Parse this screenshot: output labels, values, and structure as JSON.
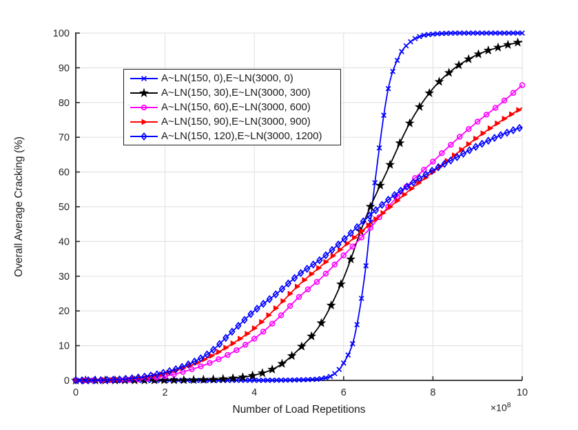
{
  "style": {
    "background": "#ffffff",
    "grid_color": "#e3e3e3",
    "axis_color": "#262626",
    "tick_label_color": "#262626",
    "label_color": "#1a1a1a",
    "legend_border_color": "#1a1a1a"
  },
  "chart_data": {
    "type": "line",
    "title": "",
    "xlabel": "Number of Load Repetitions",
    "ylabel": "Overall Average Cracking (%)",
    "x_axis": {
      "min": 0,
      "max": 10,
      "tick_values": [
        0,
        2,
        4,
        6,
        8,
        10
      ],
      "tick_labels": [
        "0",
        "2",
        "4",
        "6",
        "8",
        "10"
      ],
      "offset_base": "×10",
      "offset_exp": "8"
    },
    "y_axis": {
      "min": 0,
      "max": 100,
      "tick_values": [
        0,
        10,
        20,
        30,
        40,
        50,
        60,
        70,
        80,
        90,
        100
      ],
      "tick_labels": [
        "0",
        "10",
        "20",
        "30",
        "40",
        "50",
        "60",
        "70",
        "80",
        "90",
        "100"
      ]
    },
    "grid": true,
    "legend_position": "upper-left",
    "series": [
      {
        "name": "A~LN(150, 0),E~LN(3000, 0)",
        "color": "#0000ff",
        "marker": "x",
        "marker_step": 0.1,
        "x": [
          0,
          0.5,
          1,
          1.5,
          2,
          2.5,
          3,
          3.5,
          4,
          4.5,
          5,
          5.25,
          5.5,
          5.75,
          6,
          6.25,
          6.5,
          6.62,
          6.75,
          7,
          7.25,
          7.5,
          7.75,
          8,
          8.25,
          8.5,
          9,
          9.5,
          10
        ],
        "y": [
          0,
          0,
          0,
          0,
          0,
          0,
          0,
          0.01,
          0.02,
          0.05,
          0.15,
          0.25,
          0.5,
          1.5,
          5,
          13,
          33,
          48,
          62,
          84,
          93.5,
          97.5,
          99.2,
          99.7,
          99.9,
          100,
          100,
          100,
          100
        ]
      },
      {
        "name": "A~LN(150, 30),E~LN(3000, 300)",
        "color": "#000000",
        "marker": "star",
        "marker_step": 0.22,
        "x": [
          0,
          0.5,
          1,
          1.5,
          2,
          2.5,
          3,
          3.5,
          4,
          4.5,
          5,
          5.5,
          6,
          6.5,
          7,
          7.5,
          8,
          8.5,
          9,
          9.5,
          10
        ],
        "y": [
          0,
          0,
          0.01,
          0.02,
          0.05,
          0.1,
          0.25,
          0.6,
          1.5,
          3.8,
          9,
          16.5,
          29.5,
          47,
          61,
          74.5,
          84,
          90,
          93.8,
          96,
          97.6
        ]
      },
      {
        "name": "A~LN(150, 60),E~LN(3000, 600)",
        "color": "#ff00ff",
        "marker": "circle",
        "marker_step": 0.2,
        "x": [
          0,
          0.5,
          1,
          1.5,
          2,
          2.5,
          3,
          3.5,
          4,
          4.5,
          5,
          5.5,
          6,
          6.5,
          7,
          7.5,
          8,
          8.5,
          9,
          9.5,
          10
        ],
        "y": [
          0,
          0.02,
          0.1,
          0.4,
          1.2,
          2.8,
          5,
          8,
          12,
          17.5,
          24,
          29.5,
          36,
          42.5,
          50,
          57,
          63,
          69,
          74.5,
          79.5,
          85
        ]
      },
      {
        "name": "A~LN(150, 90),E~LN(3000, 900)",
        "color": "#ff0000",
        "marker": "triangle-right",
        "marker_step": 0.16,
        "x": [
          0,
          0.5,
          1,
          1.5,
          2,
          2.5,
          3,
          3.5,
          4,
          4.5,
          5,
          5.5,
          6,
          6.5,
          7,
          7.5,
          8,
          8.5,
          9,
          9.5,
          10
        ],
        "y": [
          0,
          0.05,
          0.2,
          0.8,
          2,
          4,
          6.8,
          10.5,
          15,
          21,
          27.5,
          33,
          38.5,
          44,
          49.5,
          55,
          60,
          65,
          70,
          74.5,
          78.5
        ]
      },
      {
        "name": "A~LN(150, 120),E~LN(3000, 1200)",
        "color": "#0000ff",
        "marker": "diamond",
        "marker_step": 0.14,
        "x": [
          0,
          0.5,
          1,
          1.5,
          2,
          2.5,
          3,
          3.5,
          4,
          4.5,
          5,
          5.5,
          6,
          6.5,
          7,
          7.5,
          8,
          8.5,
          9,
          9.5,
          10
        ],
        "y": [
          0,
          0.05,
          0.3,
          1,
          2.3,
          4.5,
          8,
          14,
          20,
          25,
          30.5,
          35,
          40.5,
          46.5,
          52,
          56.5,
          60.5,
          64,
          67.5,
          70.5,
          73
        ]
      }
    ]
  }
}
